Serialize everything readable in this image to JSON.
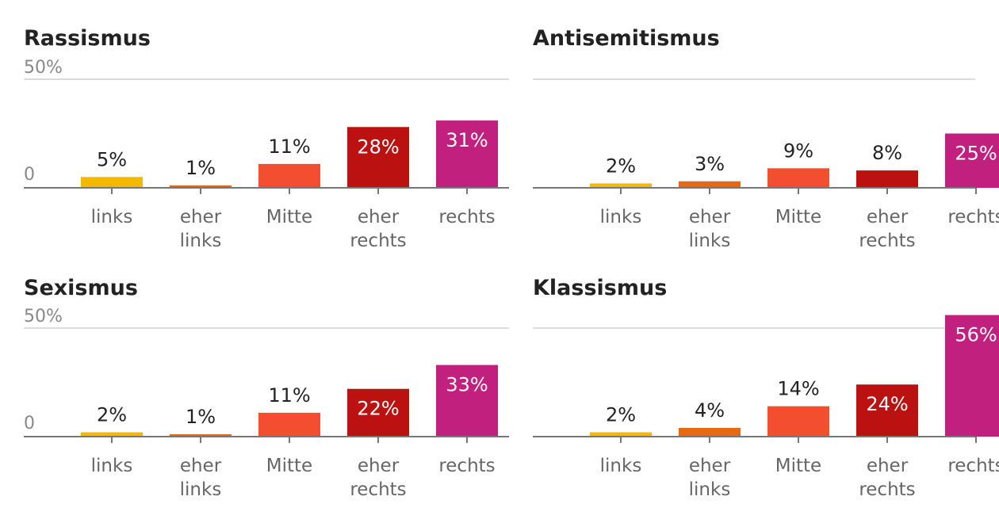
{
  "chart_data": [
    {
      "type": "bar",
      "title": "Rassismus",
      "categories": [
        "links",
        "eher links",
        "Mitte",
        "eher rechts",
        "rechts"
      ],
      "values": [
        5,
        1,
        11,
        28,
        31
      ],
      "value_labels": [
        "5%",
        "1%",
        "11%",
        "28%",
        "31%"
      ],
      "ylim": [
        0,
        50
      ],
      "y_ticks": [
        "50%",
        "0"
      ],
      "grid": true
    },
    {
      "type": "bar",
      "title": "Antisemitismus",
      "categories": [
        "links",
        "eher links",
        "Mitte",
        "eher rechts",
        "rechts"
      ],
      "values": [
        2,
        3,
        9,
        8,
        25
      ],
      "value_labels": [
        "2%",
        "3%",
        "9%",
        "8%",
        "25%"
      ],
      "ylim": [
        0,
        50
      ],
      "y_ticks": [
        "",
        ""
      ],
      "grid": true
    },
    {
      "type": "bar",
      "title": "Sexismus",
      "categories": [
        "links",
        "eher links",
        "Mitte",
        "eher rechts",
        "rechts"
      ],
      "values": [
        2,
        1,
        11,
        22,
        33
      ],
      "value_labels": [
        "2%",
        "1%",
        "11%",
        "22%",
        "33%"
      ],
      "ylim": [
        0,
        50
      ],
      "y_ticks": [
        "50%",
        "0"
      ],
      "grid": true
    },
    {
      "type": "bar",
      "title": "Klassismus",
      "categories": [
        "links",
        "eher links",
        "Mitte",
        "eher rechts",
        "rechts"
      ],
      "values": [
        2,
        4,
        14,
        24,
        56
      ],
      "value_labels": [
        "2%",
        "4%",
        "14%",
        "24%",
        "56%"
      ],
      "ylim": [
        0,
        50
      ],
      "y_ticks": [
        "",
        ""
      ],
      "grid": true
    }
  ],
  "colors": {
    "links": "#f5b800",
    "eher links": "#e8670f",
    "Mitte": "#f24e2f",
    "eher rechts": "#bb1111",
    "rechts": "#c2207e",
    "axis": "#777777",
    "grid": "#dddddd",
    "title": "#222222",
    "tick": "#888888",
    "category_label": "#666666"
  }
}
